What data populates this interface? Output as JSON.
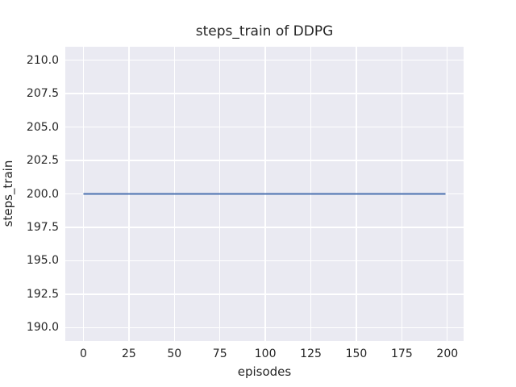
{
  "chart_data": {
    "type": "line",
    "title": "steps_train of DDPG",
    "xlabel": "episodes",
    "ylabel": "steps_train",
    "x_ticks": [
      0,
      25,
      50,
      75,
      100,
      125,
      150,
      175,
      200
    ],
    "y_tick_labels": [
      "190.0",
      "192.5",
      "195.0",
      "197.5",
      "200.0",
      "202.5",
      "205.0",
      "207.5",
      "210.0"
    ],
    "xlim": [
      -9.95,
      208.95
    ],
    "ylim": [
      189.0,
      211.0
    ],
    "grid": true,
    "legend": false,
    "series": [
      {
        "x": [
          0,
          199
        ],
        "y": [
          200,
          200
        ],
        "constant_value": 200,
        "color": "#4c72b0",
        "linewidth": 2.1
      }
    ],
    "colors": {
      "figure_bg": "#ffffff",
      "plot_bg": "#eaeaf2",
      "grid": "#ffffff",
      "text": "#262626"
    }
  }
}
